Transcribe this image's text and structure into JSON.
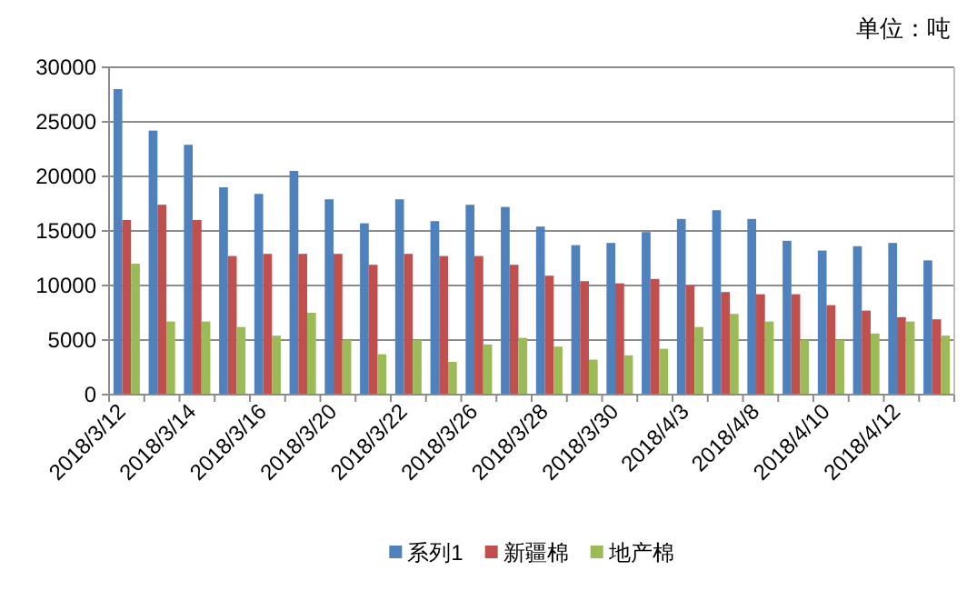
{
  "chart_data": {
    "type": "bar",
    "annotations": [
      "单位：吨"
    ],
    "categories": [
      "2018/3/12",
      null,
      "2018/3/14",
      null,
      "2018/3/16",
      null,
      "2018/3/20",
      null,
      "2018/3/22",
      null,
      "2018/3/26",
      null,
      "2018/3/28",
      null,
      "2018/3/30",
      null,
      "2018/4/3",
      null,
      "2018/4/8",
      null,
      "2018/4/10",
      null,
      "2018/4/12",
      null
    ],
    "series": [
      {
        "name": "系列1",
        "color": "#4f81bd",
        "values": [
          28000,
          24200,
          22900,
          19000,
          18400,
          20500,
          17900,
          15700,
          17900,
          15900,
          17400,
          17200,
          15400,
          13700,
          13900,
          14900,
          16100,
          16900,
          16100,
          14100,
          13200,
          13600,
          13900,
          12300
        ]
      },
      {
        "name": "新疆棉",
        "color": "#c0504d",
        "values": [
          16000,
          17400,
          16000,
          12700,
          12900,
          12900,
          12900,
          11900,
          12900,
          12700,
          12700,
          11900,
          10900,
          10400,
          10200,
          10600,
          10000,
          9400,
          9200,
          9200,
          8200,
          7700,
          7100,
          6900
        ]
      },
      {
        "name": "地产棉",
        "color": "#9bbb59",
        "values": [
          12000,
          6700,
          6700,
          6200,
          5400,
          7500,
          5000,
          3700,
          5000,
          3000,
          4600,
          5200,
          4400,
          3200,
          3600,
          4200,
          6200,
          7400,
          6700,
          5000,
          5000,
          5600,
          6700,
          5400
        ]
      }
    ],
    "ylim": [
      0,
      30000
    ],
    "yticks": [
      0,
      5000,
      10000,
      15000,
      20000,
      25000,
      30000
    ],
    "grid": "y",
    "legend": "bottom"
  }
}
